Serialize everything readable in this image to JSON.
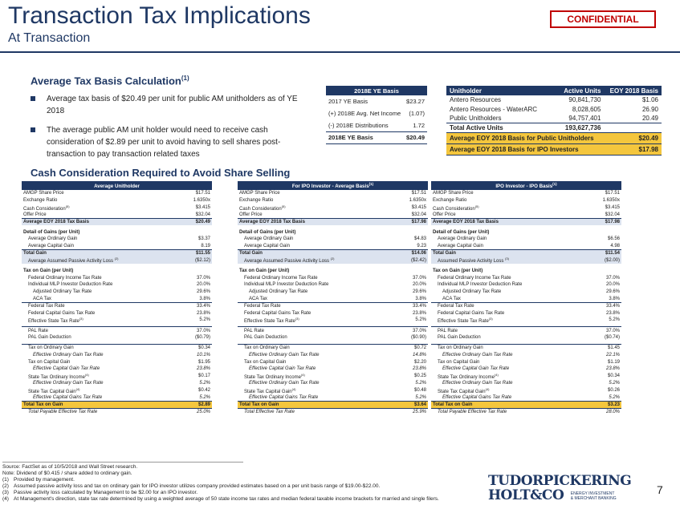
{
  "header": {
    "title": "Transaction Tax Implications",
    "subtitle": "At Transaction",
    "confidential": "CONFIDENTIAL"
  },
  "avg_basis": {
    "title": "Average Tax Basis Calculation",
    "title_sup": "(1)",
    "bullets": [
      "Average tax basis of $20.49 per unit for public AM unitholders as of YE 2018",
      "The average public AM unit holder would need to receive cash consideration of $2.89 per unit to avoid having to sell shares post-transaction to pay transaction related taxes"
    ]
  },
  "basis_table": {
    "header": "2018E YE Basis",
    "rows": [
      {
        "label": "2017 YE Basis",
        "value": "$23.27"
      },
      {
        "label": "(+) 2018E Avg. Net Income",
        "value": "(1.07)"
      },
      {
        "label": "(-) 2018E Distributions",
        "value": "1.72"
      }
    ],
    "total": {
      "label": "2018E YE Basis",
      "value": "$20.49"
    }
  },
  "units_table": {
    "headers": [
      "Unitholder",
      "Active Units",
      "EOY 2018 Basis"
    ],
    "rows": [
      [
        "Antero Resources",
        "90,841,730",
        "$1.06"
      ],
      [
        "Antero Resources - WaterARC",
        "8,028,605",
        "26.90"
      ],
      [
        "Public Unitholders",
        "94,757,401",
        "20.49"
      ]
    ],
    "total": [
      "Total Active Units",
      "193,627,736",
      ""
    ],
    "highlights": [
      {
        "label": "Average EOY 2018 Basis for Public Unitholders",
        "value": "$20.49"
      },
      {
        "label": "Average EOY 2018 Basis for IPO Investors",
        "value": "$17.98"
      }
    ]
  },
  "cash": {
    "title": "Cash Consideration Required to Avoid Share Selling",
    "columns": [
      {
        "header": "Average Unitholder",
        "header_sup": "",
        "share_price": "$17.51",
        "exchange_ratio": "1.6350x",
        "cash_consideration": "$3.415",
        "offer_price": "$32.04",
        "avg_basis_label": "Average EOY 2018 Tax Basis",
        "avg_basis": "$20.49",
        "ord_gain": "$3.37",
        "cap_gain": "8.19",
        "total_gain": "$11.55",
        "passive_label": "Average Assumed Passive Activity Loss",
        "passive_sup": "(2)",
        "passive": "($2.12)",
        "fed_ord": "37.0%",
        "mlp_ded": "20.0%",
        "adj_ord": "29.6%",
        "aca": "3.8%",
        "fed_tax": "33.4%",
        "fed_cap": "23.8%",
        "eff_state": "5.2%",
        "pal_rate": "37.0%",
        "pal_ded": "($0.79)",
        "tax_ord": "$0.34",
        "eff_ord": "10.1%",
        "tax_cap": "$1.95",
        "eff_cap": "23.8%",
        "state_ord": "$0.17",
        "eff_state_ord": "5.2%",
        "state_cap": "$0.42",
        "eff_state_cap": "5.2%",
        "total_tax": "$2.89",
        "total_eff_label": "Total Payable Effective Tax Rate",
        "total_eff": "25.0%"
      },
      {
        "header": "For IPO Investor - Average Basis",
        "header_sup": "(1)",
        "share_price": "$17.51",
        "exchange_ratio": "1.6350x",
        "cash_consideration": "$3.415",
        "offer_price": "$32.04",
        "avg_basis_label": "Average EOY 2018 Tax Basis",
        "avg_basis": "$17.98",
        "ord_gain": "$4.83",
        "cap_gain": "9.23",
        "total_gain": "$14.06",
        "passive_label": "Average Assumed Passive Activity Loss",
        "passive_sup": "(2)",
        "passive": "($2.42)",
        "fed_ord": "37.0%",
        "mlp_ded": "20.0%",
        "adj_ord": "29.6%",
        "aca": "3.8%",
        "fed_tax": "33.4%",
        "fed_cap": "23.8%",
        "eff_state": "5.2%",
        "pal_rate": "37.0%",
        "pal_ded": "($0.90)",
        "tax_ord": "$0.72",
        "eff_ord": "14.8%",
        "tax_cap": "$2.20",
        "eff_cap": "23.8%",
        "state_ord": "$0.25",
        "eff_state_ord": "5.2%",
        "state_cap": "$0.48",
        "eff_state_cap": "5.2%",
        "total_tax": "$3.64",
        "total_eff_label": "Total Effective Tax Rate",
        "total_eff": "25.9%"
      },
      {
        "header": "IPO Investor - IPO Basis",
        "header_sup": "(1)",
        "share_price": "$17.51",
        "exchange_ratio": "1.6350x",
        "cash_consideration": "$3.415",
        "offer_price": "$32.04",
        "avg_basis_label": "Average EOY 2018 Tax Basis",
        "avg_basis": "$17.98",
        "ord_gain": "$6.56",
        "cap_gain": "4.98",
        "total_gain": "$11.54",
        "passive_label": "Assumed Passive Activity Loss",
        "passive_sup": "(3)",
        "passive": "($2.00)",
        "fed_ord": "37.0%",
        "mlp_ded": "20.0%",
        "adj_ord": "29.6%",
        "aca": "3.8%",
        "fed_tax": "33.4%",
        "fed_cap": "23.8%",
        "eff_state": "5.2%",
        "pal_rate": "37.0%",
        "pal_ded": "($0.74)",
        "tax_ord": "$1.45",
        "eff_ord": "22.1%",
        "tax_cap": "$1.19",
        "eff_cap": "23.8%",
        "state_ord": "$0.34",
        "eff_state_ord": "5.2%",
        "state_cap": "$0.26",
        "eff_state_cap": "5.2%",
        "total_tax": "$3.23",
        "total_eff_label": "Total Payable Effective Tax Rate",
        "total_eff": "28.0%"
      }
    ],
    "labels": {
      "share_price": "AMGP Share Price",
      "exchange_ratio": "Exchange Ratio",
      "cash_consideration": "Cash Consideration",
      "cash_sup": "(5)",
      "offer_price": "Offer Price",
      "detail_gains": "Detail of Gains (per Unit)",
      "ord_gain": "Average Ordinary Gain",
      "cap_gain": "Average Capital Gain",
      "total_gain": "Total Gain",
      "tax_on_gain": "Tax on Gain (per Unit)",
      "fed_ord": "Federal Ordinary Income Tax Rate",
      "mlp_ded": "Individual MLP Investor Deduction Rate",
      "adj_ord": "Adjusted Ordinary Tax Rate",
      "aca": "ACA Tax",
      "fed_tax": "Federal Tax Rate",
      "fed_cap": "Federal Capital Gains Tax Rate",
      "eff_state": "Effective State Tax Rate",
      "eff_state_sup": "(3)",
      "pal_rate": "PAL Rate",
      "pal_ded": "PAL Gain Deduction",
      "tax_ord": "Tax on Ordinary Gain",
      "eff_ord": "Effective Ordinary Gain Tax Rate",
      "tax_cap": "Tax on Capital Gain",
      "eff_cap": "Effective Capital Gain Tax Rate",
      "state_ord": "State Tax Ordinary Income",
      "state_ord_sup": "(4)",
      "eff_state_ord": "Effective Ordinary Gain Tax Rate",
      "state_cap": "State Tax Capital Gain",
      "state_cap_sup": "(4)",
      "eff_state_cap": "Effective Capital Gains Tax Rate",
      "total_tax": "Total Tax on Gain"
    }
  },
  "footnotes": {
    "source": "Source: FactSet as of 10/5/2018 and Wall Street research.",
    "note": "Note: Dividend of $0.415 / share added to ordinary gain.",
    "items": [
      {
        "n": "(1)",
        "text": "Provided by management."
      },
      {
        "n": "(2)",
        "text": "Assumed passive activity loss and tax on ordinary gain for IPO investor utilizes company provided estimates based on a per unit basis range of $19.00-$22.00."
      },
      {
        "n": "(3)",
        "text": "Passive activity loss calculated by Management to be $2.00 for an IPO investor."
      },
      {
        "n": "(4)",
        "text": "At Management's direction, state tax rate determined by using a weighted average of 50 state income tax rates and median federal taxable income brackets for married and single filers."
      }
    ]
  },
  "logo": {
    "line1": "TUDORPICKERING",
    "line2": "HOLT&CO",
    "tag1": "ENERGY INVESTMENT",
    "tag2": "& MERCHANT BANKING"
  },
  "page_number": "7"
}
